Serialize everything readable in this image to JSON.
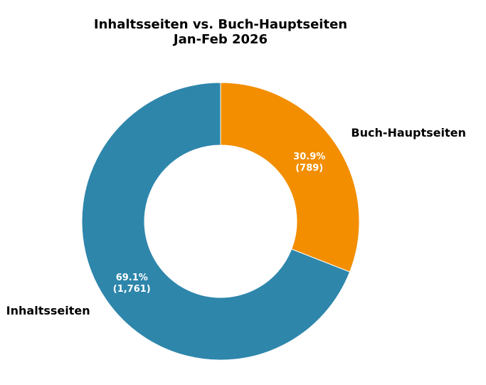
{
  "chart_data": {
    "type": "pie",
    "donut": true,
    "title": "Inhaltsseiten vs. Buch-Hauptseiten",
    "subtitle": "Jan-Feb 2026",
    "start_angle_clockwise": true,
    "slices": [
      {
        "label": "Buch-Hauptseiten",
        "value": 789,
        "percent_label": "30.9%",
        "value_label": "(789)",
        "color": "#f28e00"
      },
      {
        "label": "Inhaltsseiten",
        "value": 1761,
        "percent_label": "69.1%",
        "value_label": "(1,761)",
        "color": "#2e86ab"
      }
    ],
    "legend": "none"
  }
}
